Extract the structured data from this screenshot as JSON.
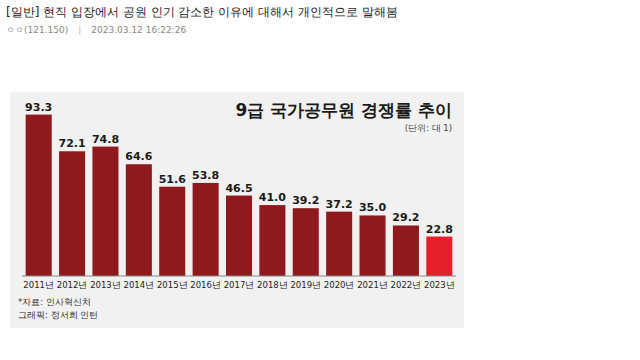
{
  "post": {
    "title": "[일반] 현직 입장에서 공원 인기 감소한 이유에 대해서 개인적으로 말해봄",
    "author": "ㅇㅇ(121.150)",
    "separator": "|",
    "date": "2023.03.12 16:22:26"
  },
  "chart_data": {
    "type": "bar",
    "title": "9급 국가공무원 경쟁률 추이",
    "subtitle": "(단위: 대 1)",
    "annotations": [
      "*자료: 인사혁신처",
      "그래픽: 정서희 인턴"
    ],
    "categories": [
      "2011년",
      "2012년",
      "2013년",
      "2014년",
      "2015년",
      "2016년",
      "2017년",
      "2018년",
      "2019년",
      "2020년",
      "2021년",
      "2022년",
      "2023년"
    ],
    "values": [
      93.3,
      72.1,
      74.8,
      64.6,
      51.6,
      53.8,
      46.5,
      41.0,
      39.2,
      37.2,
      35.0,
      29.2,
      22.8
    ],
    "value_labels": [
      "93.3",
      "72.1",
      "74.8",
      "64.6",
      "51.6",
      "53.8",
      "46.5",
      "41.0",
      "39.2",
      "37.2",
      "35.0",
      "29.2",
      "22.8"
    ],
    "colors": [
      "#8e1a1e",
      "#8e1a1e",
      "#8e1a1e",
      "#8e1a1e",
      "#8e1a1e",
      "#8e1a1e",
      "#8e1a1e",
      "#8e1a1e",
      "#8e1a1e",
      "#8e1a1e",
      "#8e1a1e",
      "#8e1a1e",
      "#e4212b"
    ],
    "ylim": [
      0,
      100
    ],
    "data_labels": true,
    "tick_labels": "x",
    "grid": false
  }
}
